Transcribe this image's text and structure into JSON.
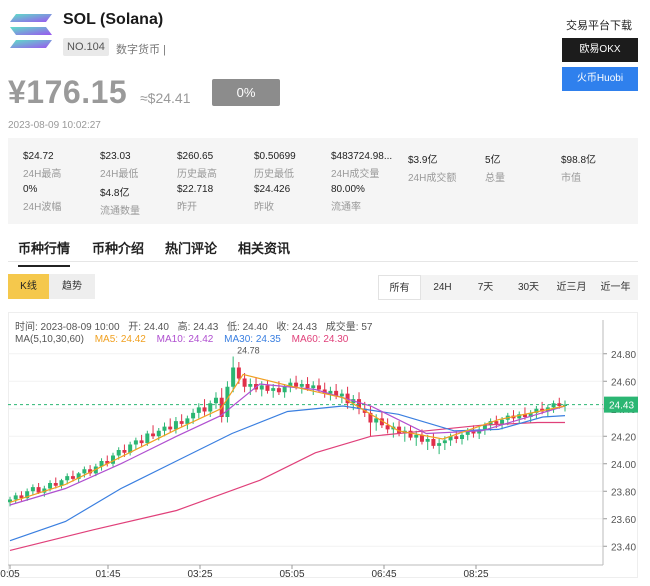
{
  "coin": {
    "name": "SOL (Solana)",
    "rank": "NO.104",
    "category": "数字货币 |"
  },
  "price": {
    "cny": "¥176.15",
    "usd": "≈$24.41",
    "change": "0%",
    "timestamp": "2023-08-09 10:02:27"
  },
  "exchange": {
    "title": "交易平台下载",
    "okx": "欧易OKX",
    "huobi": "火币Huobi",
    "okx_color": "#1c1c1c",
    "huobi_color": "#2f80ed"
  },
  "stats": [
    {
      "value": "$24.72",
      "label": "24H最高"
    },
    {
      "value": "$23.03",
      "label": "24H最低"
    },
    {
      "value": "$260.65",
      "label": "历史最高"
    },
    {
      "value": "$0.50699",
      "label": "历史最低"
    },
    {
      "value": "$483724.98...",
      "label": "24H成交量"
    },
    {
      "value": "$3.9亿",
      "label": "24H成交额"
    },
    {
      "value": "5亿",
      "label": "总量"
    },
    {
      "value": "$98.8亿",
      "label": "市值"
    },
    {
      "value": "0%",
      "label": "24H波幅"
    },
    {
      "value": "$4.8亿",
      "label": "流通数量"
    },
    {
      "value": "$22.718",
      "label": "昨开"
    },
    {
      "value": "$24.426",
      "label": "昨收"
    },
    {
      "value": "80.00%",
      "label": "流通率"
    }
  ],
  "tabs": [
    "币种行情",
    "币种介绍",
    "热门评论",
    "相关资讯"
  ],
  "chart_types": {
    "kline": "K线",
    "trend": "趋势"
  },
  "ranges": [
    "所有",
    "24H",
    "7天",
    "30天",
    "近三月",
    "近一年"
  ],
  "chart_info": {
    "time": "时间: 2023-08-09 10:00",
    "open": "开: 24.40",
    "high": "高: 24.43",
    "low": "低: 24.40",
    "close": "收: 24.43",
    "volume": "成交量: 57"
  },
  "ma": {
    "label": "MA(5,10,30,60)",
    "ma5": "MA5: 24.42",
    "ma10": "MA10: 24.42",
    "ma30": "MA30: 24.35",
    "ma60": "MA60: 24.30",
    "colors": {
      "ma5": "#f0a020",
      "ma10": "#b050d0",
      "ma30": "#3a7fe0",
      "ma60": "#e0407a"
    }
  },
  "chart_data": {
    "type": "candlestick",
    "y_ticks": [
      "24.80",
      "24.60",
      "24.40",
      "24.20",
      "24.00",
      "23.80",
      "23.60",
      "23.40"
    ],
    "ylim": [
      23.3,
      24.9
    ],
    "x_ticks": [
      "0:05",
      "01:45",
      "03:25",
      "05:05",
      "06:45",
      "08:25"
    ],
    "current_price": "24.43",
    "peak_annotation": "24.78",
    "up_color": "#2bb673",
    "down_color": "#e0304a",
    "candles": [
      [
        23.72,
        23.76,
        23.69,
        23.74
      ],
      [
        23.74,
        23.79,
        23.71,
        23.77
      ],
      [
        23.77,
        23.8,
        23.73,
        23.75
      ],
      [
        23.75,
        23.82,
        23.73,
        23.8
      ],
      [
        23.8,
        23.85,
        23.77,
        23.83
      ],
      [
        23.83,
        23.86,
        23.78,
        23.79
      ],
      [
        23.79,
        23.84,
        23.76,
        23.82
      ],
      [
        23.82,
        23.88,
        23.8,
        23.86
      ],
      [
        23.86,
        23.9,
        23.82,
        23.84
      ],
      [
        23.84,
        23.89,
        23.82,
        23.88
      ],
      [
        23.88,
        23.93,
        23.85,
        23.91
      ],
      [
        23.91,
        23.95,
        23.87,
        23.89
      ],
      [
        23.89,
        23.94,
        23.86,
        23.93
      ],
      [
        23.93,
        23.98,
        23.9,
        23.96
      ],
      [
        23.96,
        23.99,
        23.91,
        23.93
      ],
      [
        23.93,
        24.0,
        23.91,
        23.98
      ],
      [
        23.98,
        24.04,
        23.95,
        24.02
      ],
      [
        24.02,
        24.06,
        23.98,
        24.0
      ],
      [
        24.0,
        24.08,
        23.98,
        24.06
      ],
      [
        24.06,
        24.12,
        24.03,
        24.1
      ],
      [
        24.1,
        24.14,
        24.05,
        24.08
      ],
      [
        24.08,
        24.16,
        24.06,
        24.14
      ],
      [
        24.14,
        24.19,
        24.1,
        24.17
      ],
      [
        24.17,
        24.21,
        24.12,
        24.15
      ],
      [
        24.15,
        24.24,
        24.13,
        24.22
      ],
      [
        24.22,
        24.28,
        24.18,
        24.2
      ],
      [
        24.2,
        24.26,
        24.17,
        24.24
      ],
      [
        24.24,
        24.3,
        24.2,
        24.27
      ],
      [
        24.27,
        24.33,
        24.23,
        24.25
      ],
      [
        24.25,
        24.34,
        24.22,
        24.31
      ],
      [
        24.31,
        24.36,
        24.27,
        24.29
      ],
      [
        24.29,
        24.35,
        24.25,
        24.33
      ],
      [
        24.33,
        24.4,
        24.29,
        24.37
      ],
      [
        24.37,
        24.44,
        24.33,
        24.41
      ],
      [
        24.41,
        24.47,
        24.35,
        24.38
      ],
      [
        24.38,
        24.46,
        24.34,
        24.44
      ],
      [
        24.44,
        24.52,
        24.4,
        24.48
      ],
      [
        24.48,
        24.55,
        24.3,
        24.34
      ],
      [
        24.34,
        24.6,
        24.3,
        24.56
      ],
      [
        24.56,
        24.78,
        24.52,
        24.7
      ],
      [
        24.7,
        24.74,
        24.58,
        24.62
      ],
      [
        24.62,
        24.66,
        24.52,
        24.56
      ],
      [
        24.56,
        24.62,
        24.5,
        24.58
      ],
      [
        24.58,
        24.63,
        24.52,
        24.54
      ],
      [
        24.54,
        24.6,
        24.49,
        24.57
      ],
      [
        24.57,
        24.61,
        24.51,
        24.53
      ],
      [
        24.53,
        24.58,
        24.48,
        24.55
      ],
      [
        24.55,
        24.6,
        24.5,
        24.52
      ],
      [
        24.52,
        24.58,
        24.48,
        24.56
      ],
      [
        24.56,
        24.62,
        24.52,
        24.59
      ],
      [
        24.59,
        24.64,
        24.54,
        24.56
      ],
      [
        24.56,
        24.61,
        24.51,
        24.58
      ],
      [
        24.58,
        24.63,
        24.53,
        24.55
      ],
      [
        24.55,
        24.6,
        24.5,
        24.57
      ],
      [
        24.57,
        24.62,
        24.52,
        24.54
      ],
      [
        24.54,
        24.59,
        24.48,
        24.51
      ],
      [
        24.51,
        24.56,
        24.46,
        24.53
      ],
      [
        24.53,
        24.58,
        24.47,
        24.49
      ],
      [
        24.49,
        24.54,
        24.44,
        24.51
      ],
      [
        24.51,
        24.56,
        24.4,
        24.44
      ],
      [
        24.44,
        24.5,
        24.39,
        24.47
      ],
      [
        24.47,
        24.52,
        24.36,
        24.4
      ],
      [
        24.4,
        24.45,
        24.34,
        24.37
      ],
      [
        24.37,
        24.42,
        24.2,
        24.3
      ],
      [
        24.3,
        24.36,
        24.24,
        24.33
      ],
      [
        24.33,
        24.38,
        24.26,
        24.28
      ],
      [
        24.28,
        24.33,
        24.22,
        24.25
      ],
      [
        24.25,
        24.3,
        24.19,
        24.27
      ],
      [
        24.27,
        24.31,
        24.2,
        24.22
      ],
      [
        24.22,
        24.27,
        24.16,
        24.24
      ],
      [
        24.24,
        24.28,
        24.17,
        24.19
      ],
      [
        24.19,
        24.24,
        24.13,
        24.21
      ],
      [
        24.21,
        24.25,
        24.14,
        24.16
      ],
      [
        24.16,
        24.21,
        24.1,
        24.18
      ],
      [
        24.18,
        24.22,
        24.11,
        24.13
      ],
      [
        24.13,
        24.18,
        24.07,
        24.15
      ],
      [
        24.15,
        24.2,
        24.1,
        24.17
      ],
      [
        24.17,
        24.22,
        24.13,
        24.2
      ],
      [
        24.2,
        24.24,
        24.15,
        24.18
      ],
      [
        24.18,
        24.23,
        24.14,
        24.21
      ],
      [
        24.21,
        24.26,
        24.17,
        24.24
      ],
      [
        24.24,
        24.28,
        24.19,
        24.22
      ],
      [
        24.22,
        24.27,
        24.18,
        24.25
      ],
      [
        24.25,
        24.3,
        24.21,
        24.28
      ],
      [
        24.28,
        24.33,
        24.24,
        24.31
      ],
      [
        24.31,
        24.35,
        24.26,
        24.29
      ],
      [
        24.29,
        24.34,
        24.25,
        24.32
      ],
      [
        24.32,
        24.37,
        24.28,
        24.35
      ],
      [
        24.35,
        24.39,
        24.3,
        24.33
      ],
      [
        24.33,
        24.38,
        24.29,
        24.36
      ],
      [
        24.36,
        24.41,
        24.32,
        24.34
      ],
      [
        24.34,
        24.39,
        24.3,
        24.37
      ],
      [
        24.37,
        24.42,
        24.33,
        24.4
      ],
      [
        24.4,
        24.45,
        24.36,
        24.38
      ],
      [
        24.38,
        24.43,
        24.34,
        24.41
      ],
      [
        24.41,
        24.46,
        24.37,
        24.44
      ],
      [
        24.44,
        24.48,
        24.4,
        24.42
      ],
      [
        24.42,
        24.46,
        24.38,
        24.43
      ]
    ],
    "ma_lines": {
      "ma30": [
        [
          0,
          23.44
        ],
        [
          10,
          23.58
        ],
        [
          20,
          23.82
        ],
        [
          30,
          24.02
        ],
        [
          40,
          24.22
        ],
        [
          50,
          24.38
        ],
        [
          60,
          24.42
        ],
        [
          70,
          24.36
        ],
        [
          80,
          24.24
        ],
        [
          88,
          24.25
        ],
        [
          96,
          24.34
        ],
        [
          100,
          24.35
        ]
      ],
      "ma60": [
        [
          0,
          23.37
        ],
        [
          15,
          23.52
        ],
        [
          30,
          23.66
        ],
        [
          45,
          23.88
        ],
        [
          55,
          24.08
        ],
        [
          65,
          24.2
        ],
        [
          75,
          24.24
        ],
        [
          85,
          24.28
        ],
        [
          95,
          24.3
        ],
        [
          100,
          24.3
        ]
      ],
      "ma5": [
        [
          0,
          23.72
        ],
        [
          10,
          23.85
        ],
        [
          20,
          24.05
        ],
        [
          30,
          24.25
        ],
        [
          38,
          24.4
        ],
        [
          42,
          24.65
        ],
        [
          50,
          24.57
        ],
        [
          60,
          24.48
        ],
        [
          70,
          24.24
        ],
        [
          78,
          24.18
        ],
        [
          88,
          24.32
        ],
        [
          100,
          24.42
        ]
      ],
      "ma10": [
        [
          0,
          23.7
        ],
        [
          10,
          23.82
        ],
        [
          20,
          24.0
        ],
        [
          30,
          24.2
        ],
        [
          38,
          24.35
        ],
        [
          45,
          24.58
        ],
        [
          55,
          24.54
        ],
        [
          65,
          24.42
        ],
        [
          75,
          24.22
        ],
        [
          85,
          24.24
        ],
        [
          95,
          24.36
        ],
        [
          100,
          24.42
        ]
      ]
    }
  }
}
